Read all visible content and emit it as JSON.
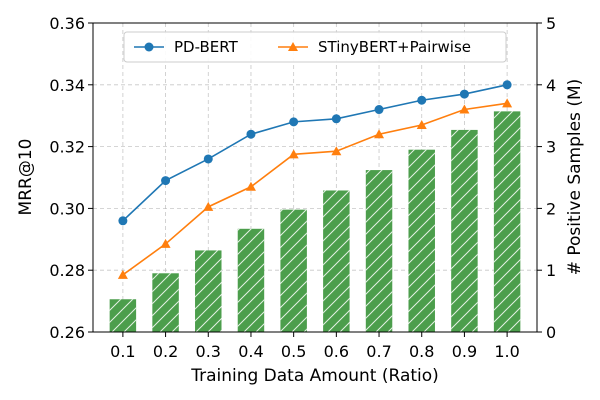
{
  "chart_data": {
    "type": "bar+line",
    "x": [
      "0.1",
      "0.2",
      "0.3",
      "0.4",
      "0.5",
      "0.6",
      "0.7",
      "0.8",
      "0.9",
      "1.0"
    ],
    "xlabel": "Training Data Amount (Ratio)",
    "ylabel_left": "MRR@10",
    "ylabel_right": "# Positive Samples (M)",
    "ylim_left": [
      0.26,
      0.36
    ],
    "ylim_right": [
      0,
      5
    ],
    "yticks_left": [
      "0.26",
      "0.28",
      "0.30",
      "0.32",
      "0.34",
      "0.36"
    ],
    "yticks_right": [
      "0",
      "1",
      "2",
      "3",
      "4",
      "5"
    ],
    "grid": true,
    "legend_position": "top",
    "bars": {
      "axis": "right",
      "color": "#4c9e4c",
      "hatch": "diagonal",
      "values": [
        0.53,
        0.95,
        1.32,
        1.67,
        1.98,
        2.29,
        2.62,
        2.95,
        3.27,
        3.57
      ]
    },
    "series": [
      {
        "name": "PD-BERT",
        "axis": "left",
        "color": "#1f77b4",
        "marker": "circle",
        "values": [
          0.296,
          0.309,
          0.316,
          0.324,
          0.328,
          0.329,
          0.332,
          0.335,
          0.337,
          0.34
        ]
      },
      {
        "name": "STinyBERT+Pairwise",
        "axis": "left",
        "color": "#ff7f0e",
        "marker": "triangle",
        "values": [
          0.2785,
          0.2885,
          0.3005,
          0.307,
          0.3175,
          0.3185,
          0.324,
          0.327,
          0.332,
          0.334
        ]
      }
    ]
  }
}
